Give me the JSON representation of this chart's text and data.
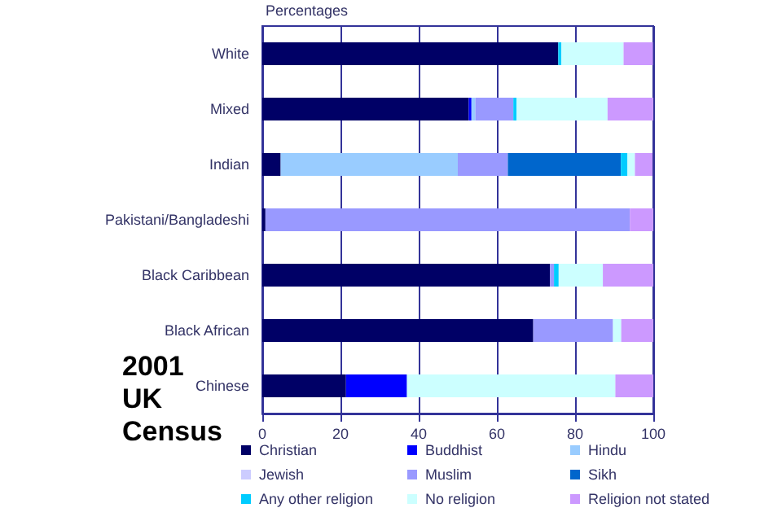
{
  "chart_data": {
    "type": "bar",
    "orientation": "horizontal",
    "stacked": true,
    "xlabel": "Percentages",
    "annotations": [
      "2001 UK Census"
    ],
    "categories": [
      "White",
      "Mixed",
      "Indian",
      "Pakistani/Bangladeshi",
      "Black Caribbean",
      "Black African",
      "Chinese"
    ],
    "series": [
      {
        "name": "Christian",
        "color": "#000066",
        "values": [
          75.7,
          52.8,
          4.7,
          0.8,
          73.6,
          69.3,
          21.4
        ]
      },
      {
        "name": "Buddhist",
        "color": "#0000ff",
        "values": [
          null,
          0.7,
          null,
          0,
          0,
          0,
          15.6
        ]
      },
      {
        "name": "Hindu",
        "color": "#99ccff",
        "values": [
          null,
          1,
          45.3,
          0,
          0,
          0,
          0
        ]
      },
      {
        "name": "Jewish",
        "color": "#ccccff",
        "values": [
          null,
          0,
          0,
          0,
          0,
          0,
          0
        ]
      },
      {
        "name": "Muslim",
        "color": "#9999ff",
        "values": [
          null,
          9.7,
          12.8,
          93.2,
          1,
          20.4,
          0
        ]
      },
      {
        "name": "Sikh",
        "color": "#0066cc",
        "values": [
          0,
          0,
          28.9,
          0,
          0,
          0,
          0
        ]
      },
      {
        "name": "Any other religion",
        "color": "#00ccff",
        "values": [
          0.8,
          0.8,
          1.7,
          0,
          1.2,
          0,
          0
        ]
      },
      {
        "name": "No religion",
        "color": "#ccffff",
        "values": [
          15.9,
          23.3,
          1.9,
          0,
          11.3,
          2.1,
          53.3
        ]
      },
      {
        "name": "Religion not stated",
        "color": "#cc99ff",
        "values": [
          7.5,
          11.7,
          4.5,
          6,
          12.9,
          8.2,
          9.7
        ]
      }
    ],
    "xlim": [
      0,
      100
    ],
    "xticks": [
      0,
      20,
      40,
      60,
      80,
      100
    ],
    "grid": "x",
    "legend": "bottom"
  }
}
